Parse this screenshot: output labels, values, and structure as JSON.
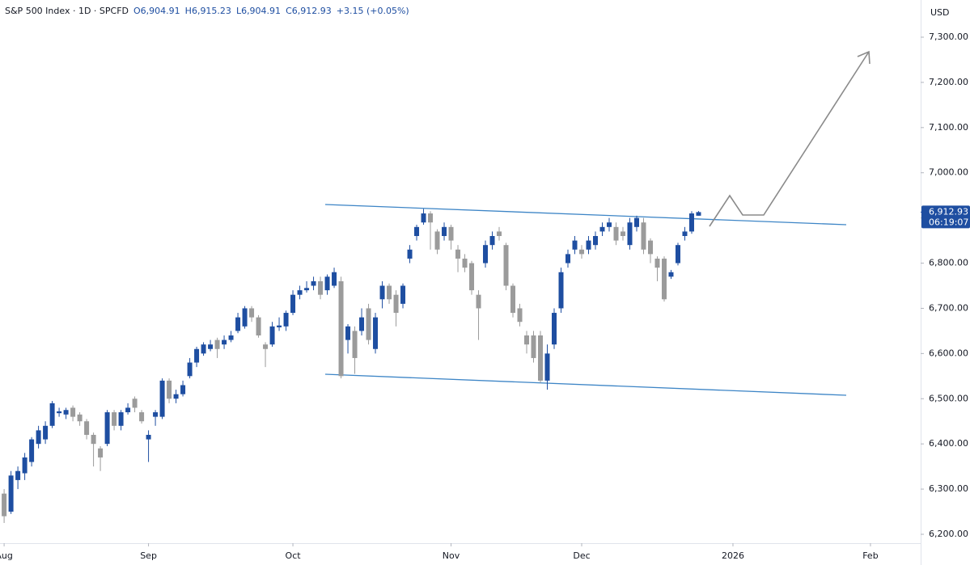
{
  "chart_data": {
    "type": "candlestick",
    "title": "S&P 500 Index · 1D · SPCFD",
    "ohlc_header": [
      "O6,904.91",
      "H6,915.23",
      "L6,904.91",
      "C6,912.93",
      "+3.15 (+0.05%)"
    ],
    "currency": "USD",
    "last_price": {
      "value": 6912.93,
      "label": "6,912.93"
    },
    "countdown": "06:19:07",
    "up_color": "#1e4ea1",
    "down_color": "#9b9b9b",
    "grid": false,
    "x": [
      0,
      1,
      2,
      3,
      4,
      5,
      6,
      7,
      8,
      9,
      10,
      11,
      12,
      13,
      14,
      15,
      16,
      17,
      18,
      19,
      20,
      21,
      22,
      23,
      24,
      25,
      26,
      27,
      28,
      29,
      30,
      31,
      32,
      33,
      34,
      35,
      36,
      37,
      38,
      39,
      40,
      41,
      42,
      43,
      44,
      45,
      46,
      47,
      48,
      49,
      50,
      51,
      52,
      53,
      54,
      55,
      56,
      57,
      58,
      59,
      60,
      61,
      62,
      63,
      64,
      65,
      66,
      67,
      68,
      69,
      70,
      71,
      72,
      73,
      74,
      75,
      76,
      77,
      78,
      79,
      80,
      81,
      82,
      83,
      84,
      85,
      86,
      87,
      88,
      89,
      90,
      91,
      92,
      93,
      94,
      95,
      96,
      97,
      98,
      99,
      100,
      101
    ],
    "open": [
      6290,
      6250,
      6320,
      6335,
      6360,
      6400,
      6410,
      6440,
      6468,
      6465,
      6480,
      6465,
      6450,
      6420,
      6390,
      6400,
      6470,
      6440,
      6470,
      6500,
      6470,
      6410,
      6460,
      6460,
      6540,
      6500,
      6510,
      6550,
      6580,
      6600,
      6610,
      6630,
      6620,
      6630,
      6650,
      6660,
      6700,
      6680,
      6620,
      6620,
      6658,
      6660,
      6690,
      6730,
      6740,
      6750,
      6760,
      6740,
      6750,
      6760,
      6630,
      6650,
      6650,
      6700,
      6610,
      6720,
      6750,
      6730,
      6710,
      6810,
      6860,
      6890,
      6910,
      6870,
      6860,
      6880,
      6830,
      6810,
      6800,
      6730,
      6800,
      6840,
      6870,
      6840,
      6750,
      6700,
      6640,
      6640,
      6640,
      6540,
      6620,
      6700,
      6800,
      6830,
      6830,
      6830,
      6840,
      6870,
      6880,
      6880,
      6870,
      6840,
      6880,
      6890,
      6850,
      6810,
      6810,
      6770,
      6800,
      6860,
      6870,
      6904.91
    ],
    "high": [
      6300,
      6340,
      6350,
      6380,
      6415,
      6440,
      6450,
      6495,
      6480,
      6480,
      6485,
      6470,
      6455,
      6425,
      6395,
      6475,
      6475,
      6475,
      6490,
      6505,
      6475,
      6430,
      6475,
      6545,
      6545,
      6520,
      6540,
      6590,
      6615,
      6625,
      6630,
      6635,
      6640,
      6650,
      6690,
      6705,
      6705,
      6685,
      6625,
      6670,
      6680,
      6695,
      6740,
      6750,
      6760,
      6770,
      6770,
      6775,
      6790,
      6770,
      6665,
      6660,
      6700,
      6710,
      6690,
      6760,
      6755,
      6740,
      6755,
      6840,
      6885,
      6920,
      6915,
      6875,
      6890,
      6885,
      6840,
      6820,
      6805,
      6740,
      6850,
      6870,
      6880,
      6845,
      6755,
      6710,
      6650,
      6650,
      6650,
      6620,
      6700,
      6790,
      6830,
      6860,
      6840,
      6860,
      6870,
      6890,
      6900,
      6890,
      6880,
      6900,
      6905,
      6900,
      6855,
      6815,
      6815,
      6785,
      6845,
      6880,
      6915,
      6915.23
    ],
    "low": [
      6225,
      6245,
      6300,
      6320,
      6350,
      6390,
      6400,
      6435,
      6460,
      6455,
      6450,
      6440,
      6410,
      6350,
      6340,
      6395,
      6430,
      6430,
      6465,
      6470,
      6445,
      6360,
      6440,
      6455,
      6490,
      6490,
      6505,
      6545,
      6570,
      6595,
      6605,
      6590,
      6610,
      6625,
      6645,
      6655,
      6670,
      6635,
      6570,
      6615,
      6650,
      6650,
      6685,
      6720,
      6735,
      6740,
      6720,
      6730,
      6745,
      6545,
      6600,
      6555,
      6640,
      6620,
      6600,
      6700,
      6710,
      6660,
      6700,
      6800,
      6850,
      6885,
      6830,
      6820,
      6850,
      6830,
      6780,
      6780,
      6730,
      6630,
      6790,
      6830,
      6850,
      6740,
      6680,
      6660,
      6600,
      6580,
      6535,
      6520,
      6610,
      6690,
      6790,
      6820,
      6810,
      6820,
      6830,
      6860,
      6870,
      6840,
      6850,
      6830,
      6870,
      6820,
      6800,
      6760,
      6715,
      6765,
      6795,
      6850,
      6865,
      6904.91
    ],
    "close": [
      6240,
      6330,
      6340,
      6370,
      6410,
      6430,
      6440,
      6490,
      6472,
      6475,
      6460,
      6450,
      6420,
      6400,
      6370,
      6470,
      6440,
      6470,
      6480,
      6480,
      6450,
      6420,
      6470,
      6540,
      6500,
      6510,
      6530,
      6580,
      6610,
      6620,
      6620,
      6610,
      6630,
      6640,
      6680,
      6700,
      6680,
      6640,
      6610,
      6660,
      6662,
      6690,
      6730,
      6740,
      6745,
      6760,
      6730,
      6770,
      6780,
      6550,
      6660,
      6590,
      6680,
      6630,
      6680,
      6750,
      6720,
      6690,
      6750,
      6830,
      6880,
      6910,
      6890,
      6830,
      6880,
      6850,
      6810,
      6790,
      6740,
      6700,
      6840,
      6860,
      6860,
      6750,
      6690,
      6670,
      6620,
      6590,
      6540,
      6600,
      6690,
      6780,
      6820,
      6850,
      6820,
      6850,
      6860,
      6880,
      6890,
      6850,
      6860,
      6890,
      6900,
      6830,
      6820,
      6790,
      6720,
      6780,
      6840,
      6870,
      6910,
      6912.93
    ],
    "xlim": [
      -0.6,
      133.3
    ],
    "xticks": [
      {
        "value": 0,
        "label": "Aug"
      },
      {
        "value": 21,
        "label": "Sep"
      },
      {
        "value": 42,
        "label": "Oct"
      },
      {
        "value": 65,
        "label": "Nov"
      },
      {
        "value": 84,
        "label": "Dec"
      },
      {
        "value": 106,
        "label": "2026"
      },
      {
        "value": 126,
        "label": "Feb"
      }
    ],
    "ylim": [
      6180.3,
      7382.3
    ],
    "yticks": [
      {
        "value": 6200,
        "label": "6,200.00"
      },
      {
        "value": 6300,
        "label": "6,300.00"
      },
      {
        "value": 6400,
        "label": "6,400.00"
      },
      {
        "value": 6500,
        "label": "6,500.00"
      },
      {
        "value": 6600,
        "label": "6,600.00"
      },
      {
        "value": 6700,
        "label": "6,700.00"
      },
      {
        "value": 6800,
        "label": "6,800.00"
      },
      {
        "value": 6900,
        "label": "6,900.00"
      },
      {
        "value": 7000,
        "label": "7,000.00"
      },
      {
        "value": 7100,
        "label": "7,100.00"
      },
      {
        "value": 7200,
        "label": "7,200.00"
      },
      {
        "value": 7300,
        "label": "7,300.00"
      }
    ]
  }
}
